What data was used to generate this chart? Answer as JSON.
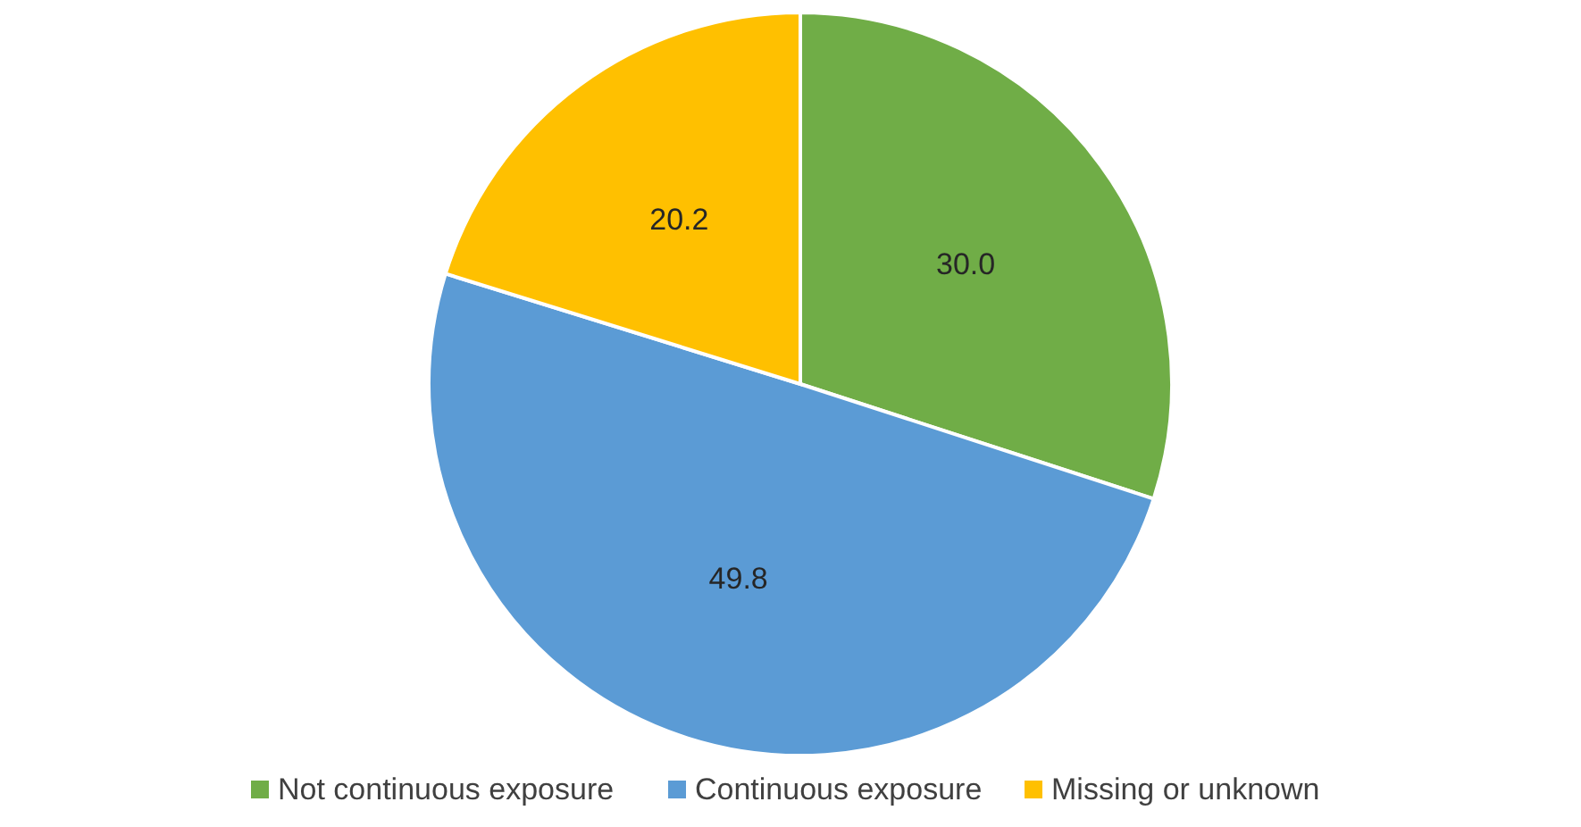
{
  "chart_data": {
    "type": "pie",
    "categories": [
      "Not continuous exposure",
      "Continuous exposure",
      "Missing or unknown"
    ],
    "values": [
      30.0,
      49.8,
      20.2
    ],
    "colors": [
      "#70ad47",
      "#5b9bd5",
      "#ffc000"
    ],
    "value_labels": [
      "30.0",
      "49.8",
      "20.2"
    ],
    "legend": "bottom"
  }
}
